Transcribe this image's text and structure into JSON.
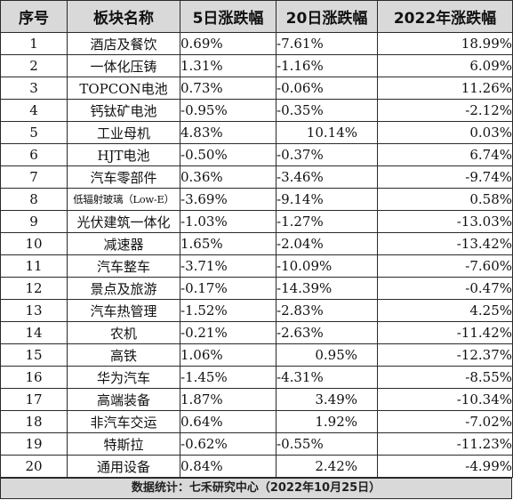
{
  "headers": {
    "rank": "序号",
    "name": "板块名称",
    "change_5d": "5日涨跌幅",
    "change_20d": "20日涨跌幅",
    "change_2022": "2022年涨跌幅"
  },
  "rows": [
    {
      "rank": "1",
      "name": "酒店及餐饮",
      "d5": "0.69%",
      "d20": "-7.61%",
      "y2022": "18.99%"
    },
    {
      "rank": "2",
      "name": "一体化压铸",
      "d5": "1.31%",
      "d20": "-1.16%",
      "y2022": "6.09%"
    },
    {
      "rank": "3",
      "name": "TOPCON电池",
      "d5": "0.73%",
      "d20": "-0.06%",
      "y2022": "11.26%"
    },
    {
      "rank": "4",
      "name": "钙钛矿电池",
      "d5": "-0.95%",
      "d20": "-0.35%",
      "y2022": "-2.12%"
    },
    {
      "rank": "5",
      "name": "工业母机",
      "d5": "4.83%",
      "d20": "10.14%",
      "y2022": "0.03%"
    },
    {
      "rank": "6",
      "name": "HJT电池",
      "d5": "-0.50%",
      "d20": "-0.37%",
      "y2022": "6.74%"
    },
    {
      "rank": "7",
      "name": "汽车零部件",
      "d5": "0.36%",
      "d20": "-3.46%",
      "y2022": "-9.74%"
    },
    {
      "rank": "8",
      "name": "低辐射玻璃（Low-E）",
      "d5": "-3.69%",
      "d20": "-9.14%",
      "y2022": "0.58%"
    },
    {
      "rank": "9",
      "name": "光伏建筑一体化",
      "d5": "-1.03%",
      "d20": "-1.27%",
      "y2022": "-13.03%"
    },
    {
      "rank": "10",
      "name": "减速器",
      "d5": "1.65%",
      "d20": "-2.04%",
      "y2022": "-13.42%"
    },
    {
      "rank": "11",
      "name": "汽车整车",
      "d5": "-3.71%",
      "d20": "-10.09%",
      "y2022": "-7.60%"
    },
    {
      "rank": "12",
      "name": "景点及旅游",
      "d5": "-0.17%",
      "d20": "-14.39%",
      "y2022": "-0.47%"
    },
    {
      "rank": "13",
      "name": "汽车热管理",
      "d5": "-1.52%",
      "d20": "-2.83%",
      "y2022": "4.25%"
    },
    {
      "rank": "14",
      "name": "农机",
      "d5": "-0.21%",
      "d20": "-2.63%",
      "y2022": "-11.42%"
    },
    {
      "rank": "15",
      "name": "高铁",
      "d5": "1.06%",
      "d20": "0.95%",
      "y2022": "-12.37%"
    },
    {
      "rank": "16",
      "name": "华为汽车",
      "d5": "-1.45%",
      "d20": "-4.31%",
      "y2022": "-8.55%"
    },
    {
      "rank": "17",
      "name": "高端装备",
      "d5": "1.87%",
      "d20": "3.49%",
      "y2022": "-10.34%"
    },
    {
      "rank": "18",
      "name": "非汽车交运",
      "d5": "0.64%",
      "d20": "1.92%",
      "y2022": "-7.02%"
    },
    {
      "rank": "19",
      "name": "特斯拉",
      "d5": "-0.62%",
      "d20": "-0.55%",
      "y2022": "-11.23%"
    },
    {
      "rank": "20",
      "name": "通用设备",
      "d5": "0.84%",
      "d20": "2.42%",
      "y2022": "-4.99%"
    }
  ],
  "footer": "数据统计：七禾研究中心（2022年10月25日）"
}
